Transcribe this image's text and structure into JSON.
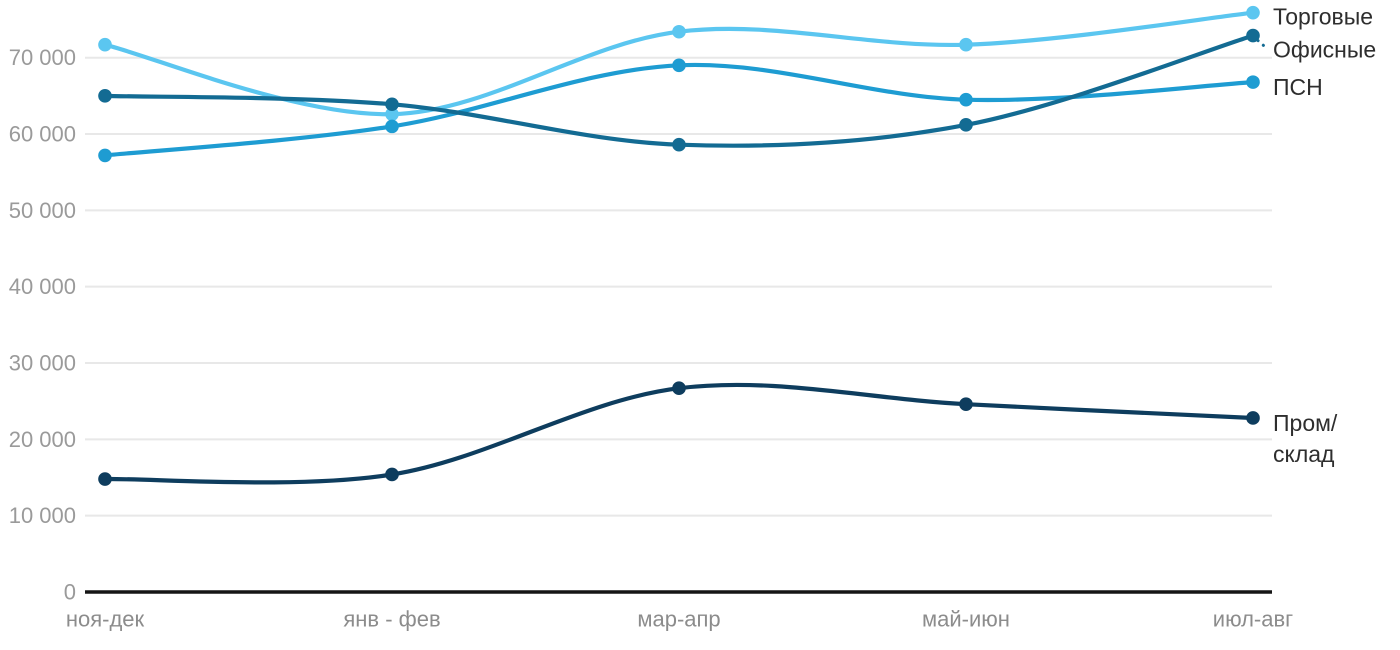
{
  "chart_data": {
    "type": "line",
    "title": "",
    "xlabel": "",
    "ylabel": "",
    "categories": [
      "ноя-дек",
      "янв - фев",
      "мар-апр",
      "май-июн",
      "июл-авг"
    ],
    "y_ticks": [
      {
        "value": 0,
        "label": "0"
      },
      {
        "value": 10000,
        "label": "10 000"
      },
      {
        "value": 20000,
        "label": "20 000"
      },
      {
        "value": 30000,
        "label": "30 000"
      },
      {
        "value": 40000,
        "label": "40 000"
      },
      {
        "value": 50000,
        "label": "50 000"
      },
      {
        "value": 60000,
        "label": "60 000"
      },
      {
        "value": 70000,
        "label": "70 000"
      }
    ],
    "ylim": [
      0,
      77500
    ],
    "grid": "horizontal-only",
    "legend_position": "right-of-line-ends",
    "series": [
      {
        "name": "Торговые",
        "label_lines": [
          "Торговые"
        ],
        "color": "#5BC6F0",
        "values": [
          71700,
          62600,
          73400,
          71700,
          75900
        ]
      },
      {
        "name": "Офисные",
        "label_lines": [
          "Офисные"
        ],
        "color": "#136B93",
        "values": [
          65000,
          63900,
          58600,
          61200,
          72900
        ],
        "leader_dotted": true
      },
      {
        "name": "ПСН",
        "label_lines": [
          "ПСН"
        ],
        "color": "#1E9CD2",
        "values": [
          57200,
          61000,
          69000,
          64500,
          66800
        ]
      },
      {
        "name": "Пром/склад",
        "label_lines": [
          "Пром/",
          "склад"
        ],
        "color": "#0E3D5E",
        "values": [
          14800,
          15400,
          26700,
          24600,
          22800
        ]
      }
    ],
    "colors": {
      "background": "#FFFFFF",
      "grid": "#E8E8E8",
      "axis": "#151515",
      "y_tick_label": "#9A9A9A",
      "x_tick_label": "#8C8C8C",
      "legend_text": "#2E2E2E"
    }
  }
}
